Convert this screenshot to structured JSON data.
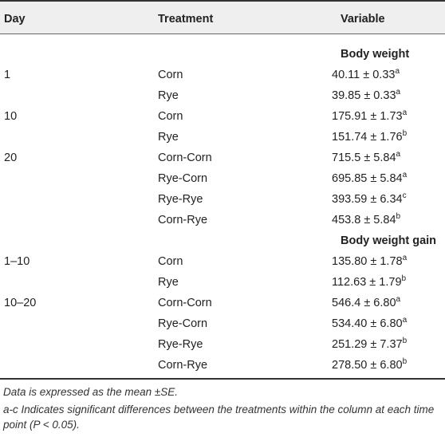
{
  "table": {
    "headers": {
      "day": "Day",
      "treatment": "Treatment",
      "variable": "Variable"
    },
    "sections": [
      {
        "title": "Body weight",
        "rows": [
          {
            "day": "1",
            "treatment": "Corn",
            "mean": "40.11",
            "se": "0.33",
            "sup": "a"
          },
          {
            "day": "",
            "treatment": "Rye",
            "mean": "39.85",
            "se": "0.33",
            "sup": "a"
          },
          {
            "day": "10",
            "treatment": "Corn",
            "mean": "175.91",
            "se": "1.73",
            "sup": "a"
          },
          {
            "day": "",
            "treatment": "Rye",
            "mean": "151.74",
            "se": "1.76",
            "sup": "b"
          },
          {
            "day": "20",
            "treatment": "Corn-Corn",
            "mean": "715.5",
            "se": "5.84",
            "sup": "a"
          },
          {
            "day": "",
            "treatment": "Rye-Corn",
            "mean": "695.85",
            "se": "5.84",
            "sup": "a"
          },
          {
            "day": "",
            "treatment": "Rye-Rye",
            "mean": "393.59",
            "se": "6.34",
            "sup": "c"
          },
          {
            "day": "",
            "treatment": "Corn-Rye",
            "mean": "453.8",
            "se": "5.84",
            "sup": "b"
          }
        ]
      },
      {
        "title": "Body weight gain",
        "rows": [
          {
            "day": "1–10",
            "treatment": "Corn",
            "mean": "135.80",
            "se": "1.78",
            "sup": "a"
          },
          {
            "day": "",
            "treatment": "Rye",
            "mean": "112.63",
            "se": "1.79",
            "sup": "b"
          },
          {
            "day": "10–20",
            "treatment": "Corn-Corn",
            "mean": "546.4",
            "se": "6.80",
            "sup": "a"
          },
          {
            "day": "",
            "treatment": "Rye-Corn",
            "mean": "534.40",
            "se": "6.80",
            "sup": "a"
          },
          {
            "day": "",
            "treatment": "Rye-Rye",
            "mean": "251.29",
            "se": "7.37",
            "sup": "b"
          },
          {
            "day": "",
            "treatment": "Corn-Rye",
            "mean": "278.50",
            "se": "6.80",
            "sup": "b"
          }
        ]
      }
    ],
    "pm_symbol": "±"
  },
  "footnotes": {
    "line1": "Data is expressed as the mean ±SE.",
    "line2": "a-c Indicates significant differences between the treatments within the column at each time point (P < 0.05)."
  }
}
